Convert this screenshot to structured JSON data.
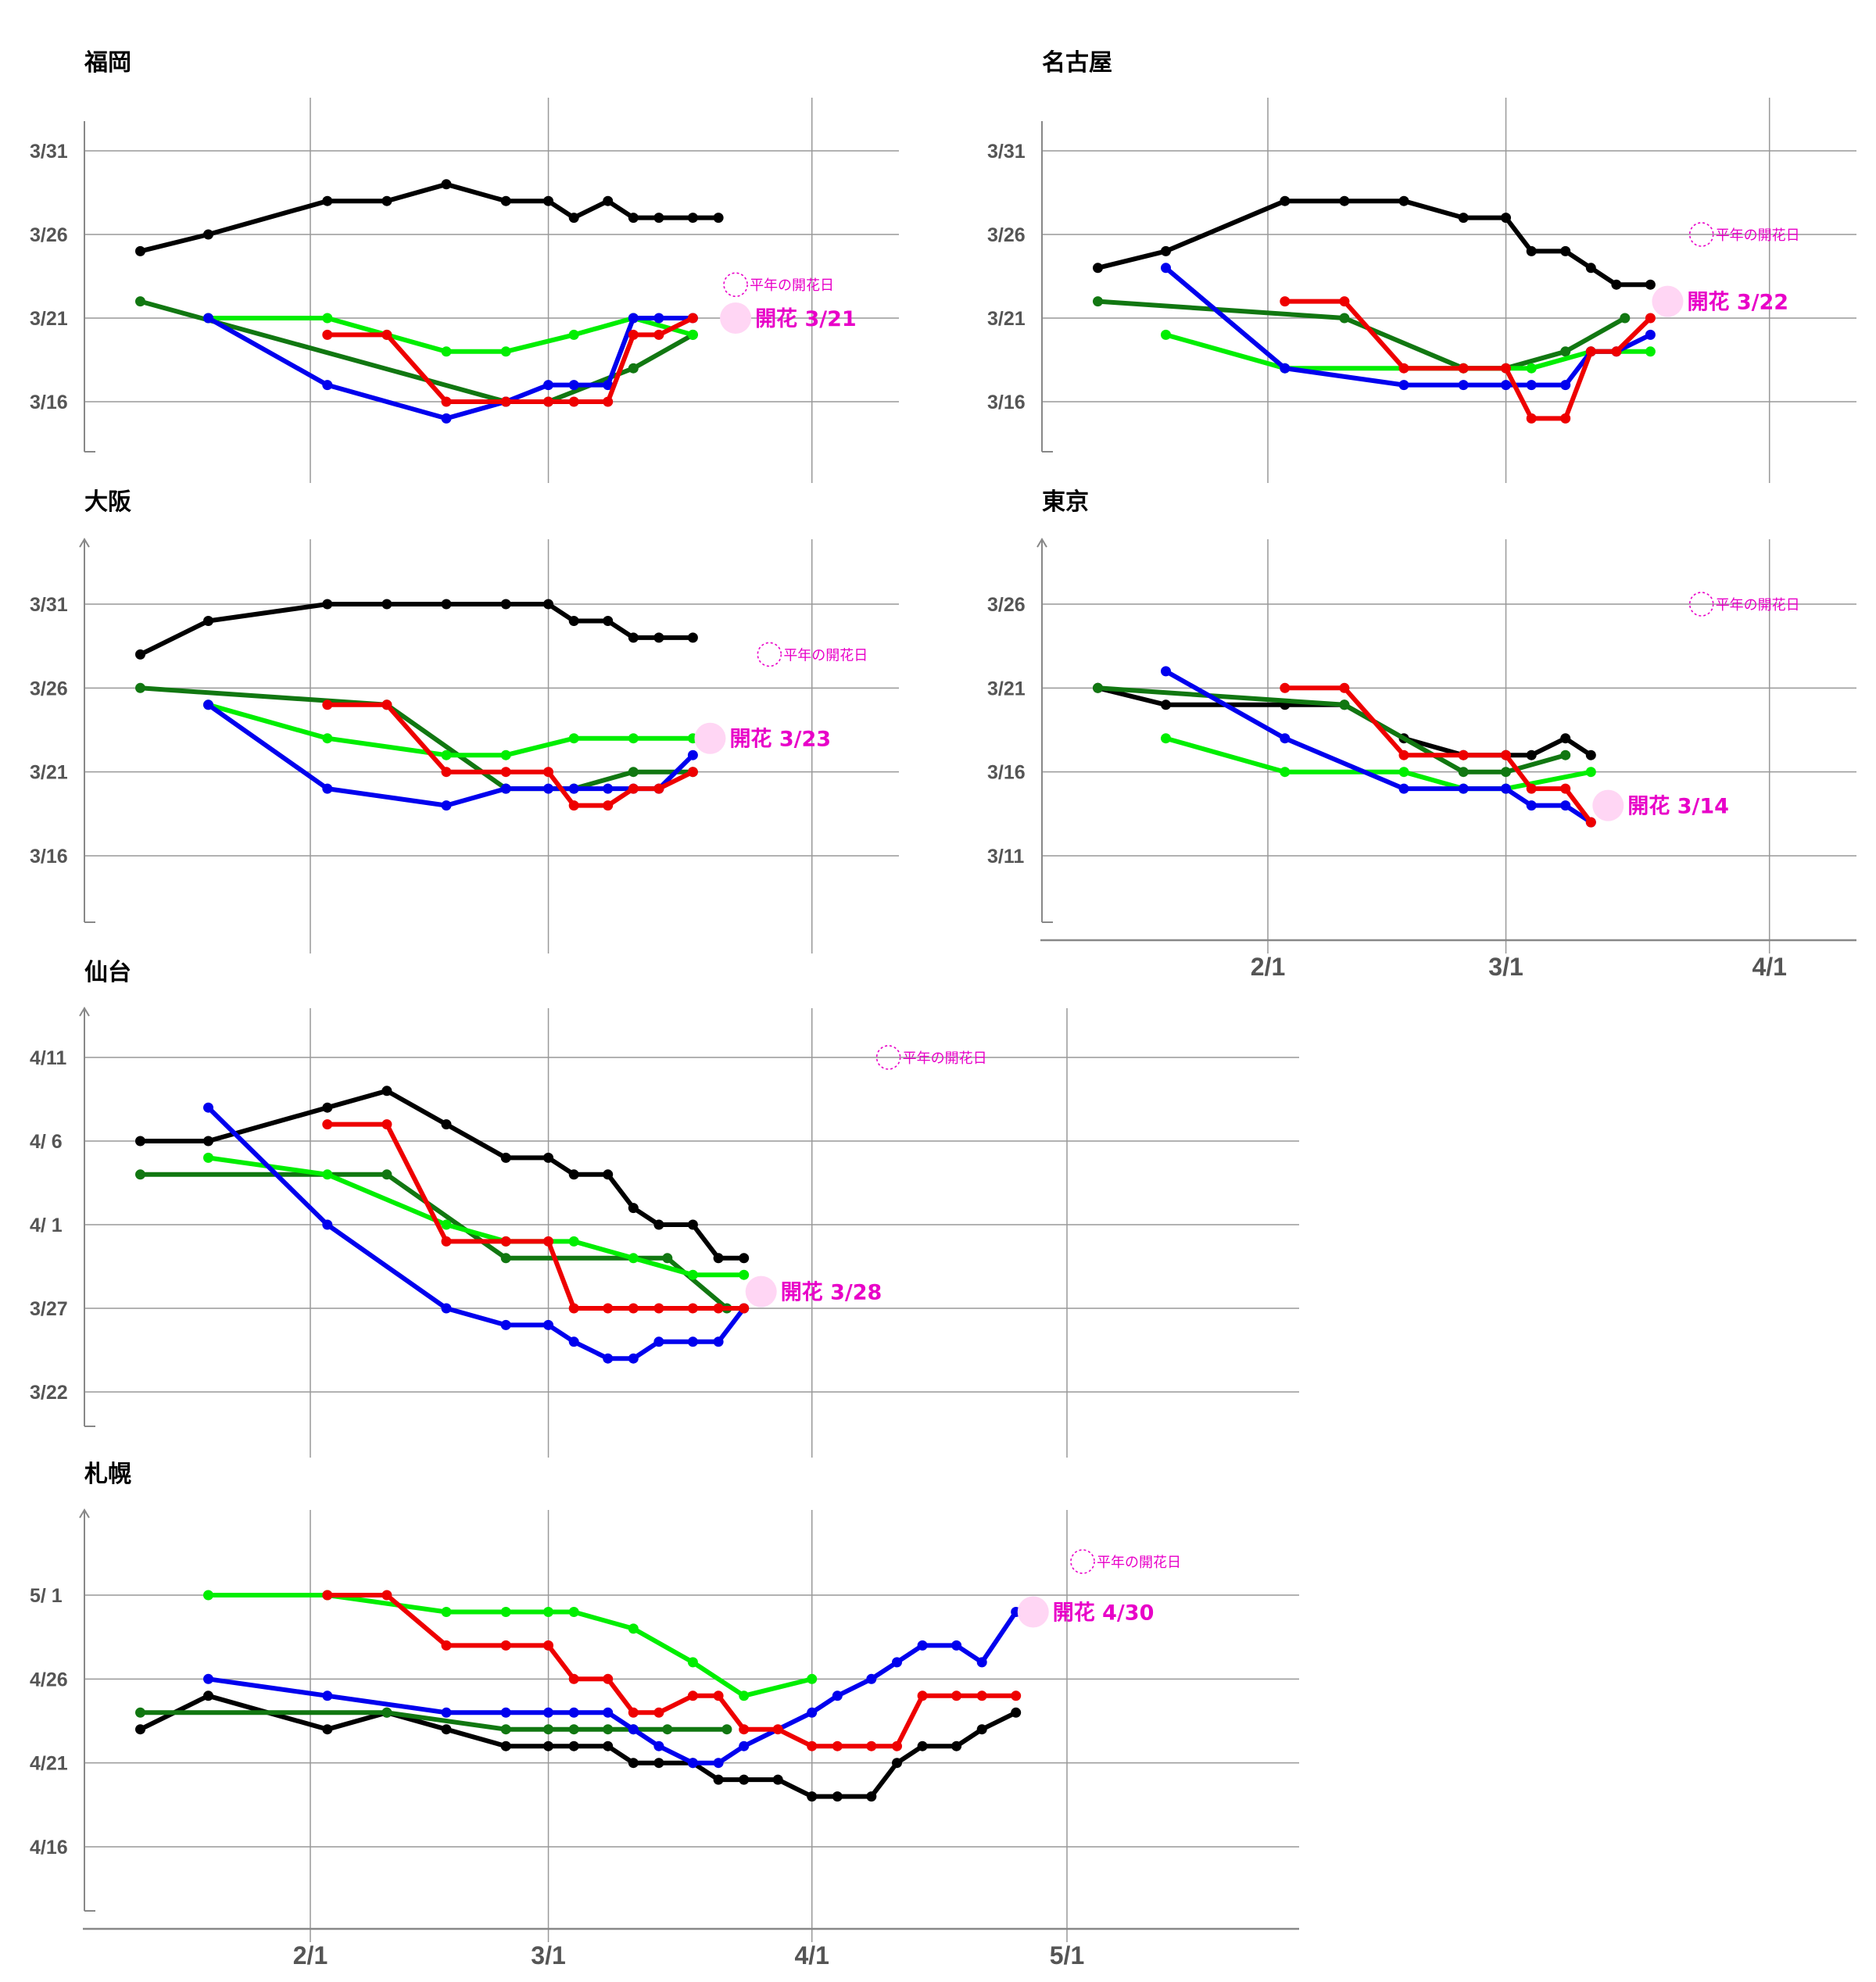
{
  "colors": {
    "black": "#000000",
    "blue": "#0000ee",
    "red": "#ee0000",
    "darkgreen": "#117711",
    "lime": "#00ee00",
    "accent": "#e800c8",
    "bloom_fill": "#ffd6f4",
    "grid": "#999999"
  },
  "x_ticks": [
    "2/1",
    "3/1",
    "4/1",
    "5/1"
  ],
  "normal_label": "平年の開花日",
  "chart_data": [
    {
      "type": "line",
      "title": "福岡",
      "ylim": [
        "3/12",
        "4/3"
      ],
      "y_ticks": [
        "3/31",
        "3/26",
        "3/21",
        "3/16"
      ],
      "bloom": {
        "label": "開花 3/21",
        "date": "3/21"
      },
      "normal_date": "3/23",
      "x_dates": [
        "1/12",
        "1/20",
        "2/3",
        "2/10",
        "2/17",
        "2/24",
        "3/1",
        "3/4",
        "3/8",
        "3/11",
        "3/14",
        "3/18",
        "3/21"
      ],
      "series": [
        {
          "color": "black",
          "x": [
            "1/12",
            "1/20",
            "2/3",
            "2/10",
            "2/17",
            "2/24",
            "3/1",
            "3/4",
            "3/8",
            "3/11",
            "3/14",
            "3/18",
            "3/21"
          ],
          "y": [
            "3/25",
            "3/26",
            "3/28",
            "3/28",
            "3/29",
            "3/28",
            "3/28",
            "3/27",
            "3/28",
            "3/27",
            "3/27",
            "3/27",
            "3/27"
          ]
        },
        {
          "color": "darkgreen",
          "x": [
            "1/12",
            "2/24",
            "3/1",
            "3/11",
            "3/18"
          ],
          "y": [
            "3/22",
            "3/16",
            "3/16",
            "3/18",
            "3/20"
          ]
        },
        {
          "color": "lime",
          "x": [
            "1/20",
            "2/3",
            "2/10",
            "2/17",
            "2/24",
            "3/4",
            "3/11",
            "3/18"
          ],
          "y": [
            "3/21",
            "3/21",
            "3/20",
            "3/19",
            "3/19",
            "3/20",
            "3/21",
            "3/20"
          ]
        },
        {
          "color": "blue",
          "x": [
            "1/20",
            "2/3",
            "2/17",
            "2/24",
            "3/1",
            "3/4",
            "3/8",
            "3/11",
            "3/14",
            "3/18"
          ],
          "y": [
            "3/21",
            "3/17",
            "3/15",
            "3/16",
            "3/17",
            "3/17",
            "3/17",
            "3/21",
            "3/21",
            "3/21"
          ]
        },
        {
          "color": "red",
          "x": [
            "2/3",
            "2/10",
            "2/17",
            "2/24",
            "3/1",
            "3/4",
            "3/8",
            "3/11",
            "3/14",
            "3/18"
          ],
          "y": [
            "3/20",
            "3/20",
            "3/16",
            "3/16",
            "3/16",
            "3/16",
            "3/16",
            "3/20",
            "3/20",
            "3/21"
          ]
        }
      ]
    },
    {
      "type": "line",
      "title": "名古屋",
      "ylim": [
        "3/12",
        "4/3"
      ],
      "y_ticks": [
        "3/31",
        "3/26",
        "3/21",
        "3/16"
      ],
      "bloom": {
        "label": "開花 3/22",
        "date": "3/22"
      },
      "normal_date": "3/26",
      "series": [
        {
          "color": "black",
          "x": [
            "1/12",
            "1/20",
            "2/3",
            "2/10",
            "2/17",
            "2/24",
            "3/1",
            "3/4",
            "3/8",
            "3/11",
            "3/14",
            "3/18"
          ],
          "y": [
            "3/24",
            "3/25",
            "3/28",
            "3/28",
            "3/28",
            "3/27",
            "3/27",
            "3/25",
            "3/25",
            "3/24",
            "3/23",
            "3/23"
          ]
        },
        {
          "color": "darkgreen",
          "x": [
            "1/12",
            "2/10",
            "2/24",
            "3/1",
            "3/8",
            "3/15"
          ],
          "y": [
            "3/22",
            "3/21",
            "3/18",
            "3/18",
            "3/19",
            "3/21"
          ]
        },
        {
          "color": "lime",
          "x": [
            "1/20",
            "2/3",
            "2/24",
            "3/4",
            "3/11",
            "3/18"
          ],
          "y": [
            "3/20",
            "3/18",
            "3/18",
            "3/18",
            "3/19",
            "3/19"
          ]
        },
        {
          "color": "blue",
          "x": [
            "1/20",
            "2/3",
            "2/17",
            "2/24",
            "3/1",
            "3/4",
            "3/8",
            "3/11",
            "3/14",
            "3/18"
          ],
          "y": [
            "3/24",
            "3/18",
            "3/17",
            "3/17",
            "3/17",
            "3/17",
            "3/17",
            "3/19",
            "3/19",
            "3/20"
          ]
        },
        {
          "color": "red",
          "x": [
            "2/3",
            "2/10",
            "2/17",
            "2/24",
            "3/1",
            "3/4",
            "3/8",
            "3/11",
            "3/14",
            "3/18"
          ],
          "y": [
            "3/22",
            "3/22",
            "3/18",
            "3/18",
            "3/18",
            "3/15",
            "3/15",
            "3/19",
            "3/19",
            "3/21"
          ]
        }
      ]
    },
    {
      "type": "line",
      "title": "大阪",
      "ylim": [
        "3/12",
        "4/3"
      ],
      "y_ticks": [
        "3/31",
        "3/26",
        "3/21",
        "3/16"
      ],
      "bloom": {
        "label": "開花 3/23",
        "date": "3/23"
      },
      "normal_date": "3/28",
      "series": [
        {
          "color": "black",
          "x": [
            "1/12",
            "1/20",
            "2/3",
            "2/10",
            "2/17",
            "2/24",
            "3/1",
            "3/4",
            "3/8",
            "3/11",
            "3/14",
            "3/18"
          ],
          "y": [
            "3/28",
            "3/30",
            "3/31",
            "3/31",
            "3/31",
            "3/31",
            "3/31",
            "3/30",
            "3/30",
            "3/29",
            "3/29",
            "3/29"
          ]
        },
        {
          "color": "darkgreen",
          "x": [
            "1/12",
            "2/10",
            "2/24",
            "3/4",
            "3/11",
            "3/18"
          ],
          "y": [
            "3/26",
            "3/25",
            "3/20",
            "3/20",
            "3/21",
            "3/21"
          ]
        },
        {
          "color": "lime",
          "x": [
            "1/20",
            "2/3",
            "2/17",
            "2/24",
            "3/4",
            "3/11",
            "3/18"
          ],
          "y": [
            "3/25",
            "3/23",
            "3/22",
            "3/22",
            "3/23",
            "3/23",
            "3/23"
          ]
        },
        {
          "color": "blue",
          "x": [
            "1/20",
            "2/3",
            "2/17",
            "2/24",
            "3/1",
            "3/4",
            "3/8",
            "3/11",
            "3/14",
            "3/18"
          ],
          "y": [
            "3/25",
            "3/20",
            "3/19",
            "3/20",
            "3/20",
            "3/20",
            "3/20",
            "3/20",
            "3/20",
            "3/22"
          ]
        },
        {
          "color": "red",
          "x": [
            "2/3",
            "2/10",
            "2/17",
            "2/24",
            "3/1",
            "3/4",
            "3/8",
            "3/11",
            "3/14",
            "3/18"
          ],
          "y": [
            "3/25",
            "3/25",
            "3/21",
            "3/21",
            "3/21",
            "3/19",
            "3/19",
            "3/20",
            "3/20",
            "3/21"
          ]
        }
      ]
    },
    {
      "type": "line",
      "title": "東京",
      "ylim": [
        "3/7",
        "3/29"
      ],
      "y_ticks": [
        "3/26",
        "3/21",
        "3/16",
        "3/11"
      ],
      "bloom": {
        "label": "開花 3/14",
        "date": "3/14"
      },
      "normal_date": "3/26",
      "series": [
        {
          "color": "black",
          "x": [
            "1/12",
            "1/20",
            "2/3",
            "2/10",
            "2/17",
            "2/24",
            "3/1",
            "3/4",
            "3/8",
            "3/11"
          ],
          "y": [
            "3/21",
            "3/20",
            "3/20",
            "3/20",
            "3/18",
            "3/17",
            "3/17",
            "3/17",
            "3/18",
            "3/17"
          ]
        },
        {
          "color": "darkgreen",
          "x": [
            "1/12",
            "2/10",
            "2/24",
            "3/1",
            "3/8"
          ],
          "y": [
            "3/21",
            "3/20",
            "3/16",
            "3/16",
            "3/17"
          ]
        },
        {
          "color": "lime",
          "x": [
            "1/20",
            "2/3",
            "2/17",
            "2/24",
            "3/1",
            "3/11"
          ],
          "y": [
            "3/18",
            "3/16",
            "3/16",
            "3/15",
            "3/15",
            "3/16"
          ]
        },
        {
          "color": "blue",
          "x": [
            "1/20",
            "2/3",
            "2/17",
            "2/24",
            "3/1",
            "3/4",
            "3/8",
            "3/11"
          ],
          "y": [
            "3/22",
            "3/18",
            "3/15",
            "3/15",
            "3/15",
            "3/14",
            "3/14",
            "3/13"
          ]
        },
        {
          "color": "red",
          "x": [
            "2/3",
            "2/10",
            "2/17",
            "2/24",
            "3/1",
            "3/4",
            "3/8",
            "3/11"
          ],
          "y": [
            "3/21",
            "3/21",
            "3/17",
            "3/17",
            "3/17",
            "3/15",
            "3/15",
            "3/13"
          ]
        }
      ]
    },
    {
      "type": "line",
      "title": "仙台",
      "ylim": [
        "3/20",
        "4/14"
      ],
      "y_ticks": [
        "4/11",
        "4/ 6",
        "4/ 1",
        "3/27",
        "3/22"
      ],
      "bloom": {
        "label": "開花 3/28",
        "date": "3/28"
      },
      "normal_date": "4/11",
      "series": [
        {
          "color": "black",
          "x": [
            "1/12",
            "1/20",
            "2/3",
            "2/10",
            "2/17",
            "2/24",
            "3/1",
            "3/4",
            "3/8",
            "3/11",
            "3/14",
            "3/18",
            "3/21",
            "3/24"
          ],
          "y": [
            "4/6",
            "4/6",
            "4/8",
            "4/9",
            "4/7",
            "4/5",
            "4/5",
            "4/4",
            "4/4",
            "4/2",
            "4/1",
            "4/1",
            "3/30",
            "3/30"
          ]
        },
        {
          "color": "darkgreen",
          "x": [
            "1/12",
            "2/10",
            "2/24",
            "3/15",
            "3/22"
          ],
          "y": [
            "4/4",
            "4/4",
            "3/30",
            "3/30",
            "3/27"
          ]
        },
        {
          "color": "lime",
          "x": [
            "1/20",
            "2/3",
            "2/17",
            "2/24",
            "3/4",
            "3/11",
            "3/18",
            "3/24"
          ],
          "y": [
            "4/5",
            "4/4",
            "4/1",
            "3/31",
            "3/31",
            "3/30",
            "3/29",
            "3/29"
          ]
        },
        {
          "color": "blue",
          "x": [
            "1/20",
            "2/3",
            "2/17",
            "2/24",
            "3/1",
            "3/4",
            "3/8",
            "3/11",
            "3/14",
            "3/18",
            "3/21",
            "3/24"
          ],
          "y": [
            "4/8",
            "4/1",
            "3/27",
            "3/26",
            "3/26",
            "3/25",
            "3/24",
            "3/24",
            "3/25",
            "3/25",
            "3/25",
            "3/27"
          ]
        },
        {
          "color": "red",
          "x": [
            "2/3",
            "2/10",
            "2/17",
            "2/24",
            "3/1",
            "3/4",
            "3/8",
            "3/11",
            "3/14",
            "3/18",
            "3/21",
            "3/24"
          ],
          "y": [
            "4/7",
            "4/7",
            "3/31",
            "3/31",
            "3/31",
            "3/27",
            "3/27",
            "3/27",
            "3/27",
            "3/27",
            "3/27",
            "3/27"
          ]
        }
      ]
    },
    {
      "type": "line",
      "title": "札幌",
      "ylim": [
        "4/12",
        "5/6"
      ],
      "y_ticks": [
        "5/ 1",
        "4/26",
        "4/21",
        "4/16"
      ],
      "bloom": {
        "label": "開花 4/30",
        "date": "4/30"
      },
      "normal_date": "5/3",
      "series": [
        {
          "color": "black",
          "x": [
            "1/12",
            "1/20",
            "2/3",
            "2/10",
            "2/17",
            "2/24",
            "3/1",
            "3/4",
            "3/8",
            "3/11",
            "3/14",
            "3/18",
            "3/21",
            "3/24",
            "3/28",
            "4/1",
            "4/4",
            "4/8",
            "4/11",
            "4/14",
            "4/18",
            "4/21",
            "4/25"
          ],
          "y": [
            "4/23",
            "4/25",
            "4/23",
            "4/24",
            "4/23",
            "4/22",
            "4/22",
            "4/22",
            "4/22",
            "4/21",
            "4/21",
            "4/21",
            "4/20",
            "4/20",
            "4/20",
            "4/19",
            "4/19",
            "4/19",
            "4/21",
            "4/22",
            "4/22",
            "4/23",
            "4/24"
          ]
        },
        {
          "color": "darkgreen",
          "x": [
            "1/12",
            "2/10",
            "2/24",
            "3/1",
            "3/4",
            "3/8",
            "3/11",
            "3/15",
            "3/22"
          ],
          "y": [
            "4/24",
            "4/24",
            "4/23",
            "4/23",
            "4/23",
            "4/23",
            "4/23",
            "4/23",
            "4/23"
          ]
        },
        {
          "color": "lime",
          "x": [
            "1/20",
            "2/3",
            "2/17",
            "2/24",
            "3/1",
            "3/4",
            "3/11",
            "3/18",
            "3/24",
            "4/1"
          ],
          "y": [
            "5/1",
            "5/1",
            "4/30",
            "4/30",
            "4/30",
            "4/30",
            "4/29",
            "4/27",
            "4/25",
            "4/26"
          ]
        },
        {
          "color": "blue",
          "x": [
            "1/20",
            "2/3",
            "2/17",
            "2/24",
            "3/1",
            "3/4",
            "3/8",
            "3/11",
            "3/14",
            "3/18",
            "3/21",
            "3/24",
            "4/1",
            "4/4",
            "4/8",
            "4/11",
            "4/14",
            "4/18",
            "4/21",
            "4/25"
          ],
          "y": [
            "4/26",
            "4/25",
            "4/24",
            "4/24",
            "4/24",
            "4/24",
            "4/24",
            "4/23",
            "4/22",
            "4/21",
            "4/21",
            "4/22",
            "4/24",
            "4/25",
            "4/26",
            "4/27",
            "4/28",
            "4/28",
            "4/27",
            "4/30"
          ]
        },
        {
          "color": "red",
          "x": [
            "2/3",
            "2/10",
            "2/17",
            "2/24",
            "3/1",
            "3/4",
            "3/8",
            "3/11",
            "3/14",
            "3/18",
            "3/21",
            "3/24",
            "3/28",
            "4/1",
            "4/4",
            "4/8",
            "4/11",
            "4/14",
            "4/18",
            "4/21",
            "4/25"
          ],
          "y": [
            "5/1",
            "5/1",
            "4/28",
            "4/28",
            "4/28",
            "4/26",
            "4/26",
            "4/24",
            "4/24",
            "4/25",
            "4/25",
            "4/23",
            "4/23",
            "4/22",
            "4/22",
            "4/22",
            "4/22",
            "4/25",
            "4/25",
            "4/25",
            "4/25"
          ]
        }
      ]
    }
  ]
}
